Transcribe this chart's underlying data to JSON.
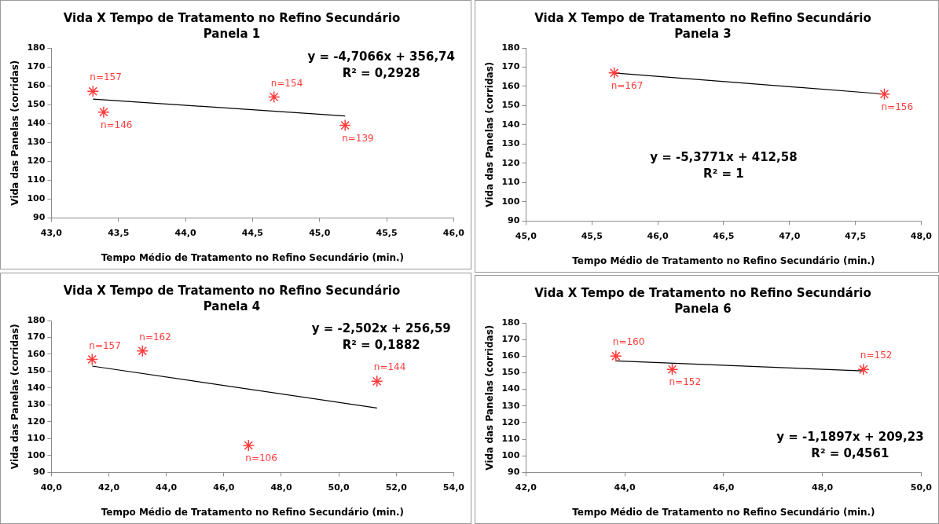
{
  "chart_data": [
    {
      "type": "scatter",
      "title": "Vida X Tempo de Tratamento no Refino Secundário",
      "subtitle": "Panela 1",
      "xlabel": "Tempo Médio de Tratamento no Refino Secundário (min.)",
      "ylabel": "Vida das Panelas (corridas)",
      "grid": false,
      "legend": false,
      "xlim": [
        43,
        46
      ],
      "xticks": [
        {
          "value": 43,
          "label": "43,0"
        },
        {
          "value": 43.5,
          "label": "43,5"
        },
        {
          "value": 44,
          "label": "44,0"
        },
        {
          "value": 44.5,
          "label": "44,5"
        },
        {
          "value": 45,
          "label": "45,0"
        },
        {
          "value": 45.5,
          "label": "45,5"
        },
        {
          "value": 46,
          "label": "46,0"
        }
      ],
      "ylim": [
        90,
        180
      ],
      "yticks": [
        90,
        100,
        110,
        120,
        130,
        140,
        150,
        160,
        170,
        180
      ],
      "series": [
        {
          "type": "scatter",
          "marker": "cross",
          "color": "#ff3b3b",
          "x": [
            43.31,
            43.39,
            44.66,
            45.19
          ],
          "values": [
            157,
            146,
            154,
            139
          ],
          "value_labels": [
            "n=157",
            "n=146",
            "n=154",
            "n=139"
          ]
        },
        {
          "type": "line",
          "color": "#000000",
          "x": [
            43.31,
            45.19
          ],
          "values": [
            152.9,
            144.0
          ]
        }
      ],
      "annotations": [
        "y = -4,7066x + 356,74",
        "R² = 0,2928"
      ]
    },
    {
      "type": "scatter",
      "title": "Vida X Tempo de Tratamento no Refino Secundário",
      "subtitle": "Panela 3",
      "xlabel": "Tempo Médio de Tratamento no Refino Secundário (min.)",
      "ylabel": "Vida das Panelas (corridas)",
      "grid": false,
      "legend": false,
      "xlim": [
        45,
        48
      ],
      "xticks": [
        {
          "value": 45,
          "label": "45,0"
        },
        {
          "value": 45.5,
          "label": "45,5"
        },
        {
          "value": 46,
          "label": "46,0"
        },
        {
          "value": 46.5,
          "label": "46,5"
        },
        {
          "value": 47,
          "label": "47,0"
        },
        {
          "value": 47.5,
          "label": "47,5"
        },
        {
          "value": 48,
          "label": "48,0"
        }
      ],
      "ylim": [
        90,
        180
      ],
      "yticks": [
        90,
        100,
        110,
        120,
        130,
        140,
        150,
        160,
        170,
        180
      ],
      "series": [
        {
          "type": "scatter",
          "marker": "cross",
          "color": "#ff3b3b",
          "x": [
            45.67,
            47.72
          ],
          "values": [
            167,
            156
          ],
          "value_labels": [
            "n=167",
            "n=156"
          ]
        },
        {
          "type": "line",
          "color": "#000000",
          "x": [
            45.67,
            47.72
          ],
          "values": [
            167.0,
            156.0
          ]
        }
      ],
      "annotations": [
        "y = -5,3771x + 412,58",
        "R² = 1"
      ]
    },
    {
      "type": "scatter",
      "title": "Vida X Tempo de Tratamento no Refino Secundário",
      "subtitle": "Panela 4",
      "xlabel": "Tempo Médio de Tratamento no Refino Secundário (min.)",
      "ylabel": "Vida das Panelas (corridas)",
      "grid": false,
      "legend": false,
      "xlim": [
        40,
        54
      ],
      "xticks": [
        {
          "value": 40,
          "label": "40,0"
        },
        {
          "value": 42,
          "label": "42,0"
        },
        {
          "value": 44,
          "label": "44,0"
        },
        {
          "value": 46,
          "label": "46,0"
        },
        {
          "value": 48,
          "label": "48,0"
        },
        {
          "value": 50,
          "label": "50,0"
        },
        {
          "value": 52,
          "label": "52,0"
        },
        {
          "value": 54,
          "label": "54,0"
        }
      ],
      "ylim": [
        90,
        180
      ],
      "yticks": [
        90,
        100,
        110,
        120,
        130,
        140,
        150,
        160,
        170,
        180
      ],
      "series": [
        {
          "type": "scatter",
          "marker": "cross",
          "color": "#ff3b3b",
          "x": [
            41.42,
            43.17,
            46.86,
            51.33
          ],
          "values": [
            157,
            162,
            106,
            144
          ],
          "value_labels": [
            "n=157",
            "n=162",
            "n=106",
            "n=144"
          ]
        },
        {
          "type": "line",
          "color": "#000000",
          "x": [
            41.42,
            51.33
          ],
          "values": [
            153.0,
            128.2
          ]
        }
      ],
      "annotations": [
        "y = -2,502x + 256,59",
        "R² = 0,1882"
      ]
    },
    {
      "type": "scatter",
      "title": "Vida X Tempo de Tratamento no Refino Secundário",
      "subtitle": "Panela 6",
      "xlabel": "Tempo Médio de Tratamento no Refino Secundário (min.)",
      "ylabel": "Vida das Panelas (corridas)",
      "grid": false,
      "legend": false,
      "xlim": [
        42,
        50
      ],
      "xticks": [
        {
          "value": 42,
          "label": "42,0"
        },
        {
          "value": 44,
          "label": "44,0"
        },
        {
          "value": 46,
          "label": "46,0"
        },
        {
          "value": 48,
          "label": "48,0"
        },
        {
          "value": 50,
          "label": "50,0"
        }
      ],
      "ylim": [
        90,
        180
      ],
      "yticks": [
        90,
        100,
        110,
        120,
        130,
        140,
        150,
        160,
        170,
        180
      ],
      "series": [
        {
          "type": "scatter",
          "marker": "cross",
          "color": "#ff3b3b",
          "x": [
            43.82,
            44.96,
            48.83
          ],
          "values": [
            160,
            152,
            152
          ],
          "value_labels": [
            "n=160",
            "n=152",
            "n=152"
          ]
        },
        {
          "type": "line",
          "color": "#000000",
          "x": [
            43.82,
            48.83
          ],
          "values": [
            157.1,
            151.1
          ]
        }
      ],
      "annotations": [
        "y = -1,1897x + 209,23",
        "R² = 0,4561"
      ]
    }
  ]
}
